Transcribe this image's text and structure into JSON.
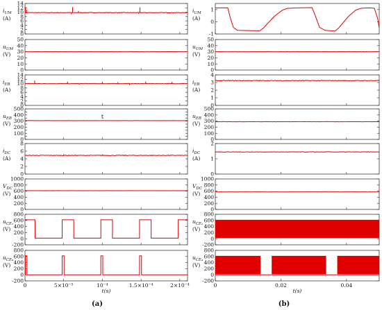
{
  "figure": {
    "panel_labels": [
      "(a)",
      "(b)"
    ]
  },
  "chart_data": [
    {
      "panel": "(a)",
      "type": "line",
      "xlabel": "t(s)",
      "xlim": [
        0,
        0.00021
      ],
      "xticks": [
        0,
        5e-05,
        0.0001,
        0.00015,
        0.0002
      ],
      "xtick_labels": [
        "0",
        "5×10⁻⁵",
        "10⁻⁴",
        "1.5×10⁻⁴",
        "2×10⁻⁴"
      ],
      "grid": false,
      "subplots": [
        {
          "ylabel": "iUM",
          "sym": "i",
          "sub": "UM",
          "unit": "(A)",
          "ylim": [
            0,
            14
          ],
          "yticks": [
            0,
            2,
            4,
            6,
            8,
            10,
            12,
            14
          ],
          "base": 9.8,
          "noise": 0.12,
          "spikes": [
            {
              "x": 5e-07,
              "y": 12.4
            },
            {
              "x": 2e-06,
              "y": 11.2
            },
            {
              "x": 6.15e-05,
              "y": 12.3
            },
            {
              "x": 6e-05,
              "y": 9.0
            },
            {
              "x": 6.9e-05,
              "y": 10.6
            },
            {
              "x": 0.0001485,
              "y": 12.2
            },
            {
              "x": 0.000147,
              "y": 9.1
            }
          ]
        },
        {
          "ylabel": "uUM",
          "sym": "u",
          "sub": "UM",
          "unit": "(V)",
          "ylim": [
            0,
            50
          ],
          "yticks": [
            0,
            10,
            20,
            30,
            40,
            50
          ],
          "base": 30,
          "noise": 0.15,
          "spikes": []
        },
        {
          "ylabel": "iEB",
          "sym": "i",
          "sub": "EB",
          "unit": "(A)",
          "ylim": [
            0,
            14
          ],
          "yticks": [
            0,
            2,
            4,
            6,
            8,
            10,
            12,
            14
          ],
          "base": 10.0,
          "noise": 0.1,
          "spikes": [
            {
              "x": 1.25e-05,
              "y": 11.4
            },
            {
              "x": 5.5e-05,
              "y": 10.9
            },
            {
              "x": 0.0001,
              "y": 10.9
            },
            {
              "x": 0.00012,
              "y": 10.6
            },
            {
              "x": 0.000156,
              "y": 11.0
            },
            {
              "x": 0.00019,
              "y": 10.8
            },
            {
              "x": 0.000135,
              "y": 9.3
            },
            {
              "x": 7e-05,
              "y": 9.5
            }
          ]
        },
        {
          "ylabel": "uEB",
          "sym": "u",
          "sub": "EB",
          "unit": "(V)",
          "ylim": [
            0,
            500
          ],
          "yticks": [
            0,
            50,
            100,
            150,
            200,
            250,
            300,
            350,
            400,
            450,
            500
          ],
          "base": 308,
          "noise": 1.2,
          "spikes": [],
          "annotation": {
            "text": "t",
            "x": 0.0001
          }
        },
        {
          "ylabel": "iDC",
          "sym": "i",
          "sub": "DC",
          "unit": "(A)",
          "ylim": [
            0,
            8
          ],
          "yticks": [
            0,
            2,
            4,
            6,
            8
          ],
          "base": 4.9,
          "noise": 0.08,
          "spikes": [
            {
              "x": 5e-05,
              "y": 5.2
            },
            {
              "x": 0.0001,
              "y": 5.15
            }
          ]
        },
        {
          "ylabel": "VDC",
          "sym": "V",
          "sub": "DC",
          "unit": "(V)",
          "ylim": [
            0,
            1000
          ],
          "yticks": [
            0,
            200,
            400,
            600,
            800,
            1000
          ],
          "base": 615,
          "noise": 2,
          "spikes": []
        },
        {
          "ylabel": "uCE2",
          "sym": "u",
          "sub": "CE₂",
          "unit": "(V)",
          "ylim": [
            -200,
            800
          ],
          "yticks": [
            -200,
            0,
            200,
            400,
            600,
            800
          ],
          "square": {
            "high": 620,
            "low": 20,
            "high_intervals": [
              [
                0,
                1.3e-05
              ],
              [
                4.8e-05,
                6.3e-05
              ],
              [
                9.8e-05,
                0.000113
              ],
              [
                0.000148,
                0.000163
              ],
              [
                0.000198,
                0.00021
              ]
            ]
          }
        },
        {
          "ylabel": "uCE4",
          "sym": "u",
          "sub": "CE₄",
          "unit": "(V)",
          "ylim": [
            -200,
            800
          ],
          "yticks": [
            -200,
            0,
            200,
            400,
            600,
            800
          ],
          "pulses": {
            "high": 620,
            "low": 0,
            "intervals": [
              [
                5e-07,
                2.5e-06
              ],
              [
                4.8e-05,
                5.05e-05
              ],
              [
                9.8e-05,
                0.0001005
              ],
              [
                0.000148,
                0.0001505
              ]
            ]
          }
        }
      ]
    },
    {
      "panel": "(b)",
      "type": "line",
      "xlabel": "t(s)",
      "xlim": [
        0,
        0.05
      ],
      "xticks": [
        0,
        0.02,
        0.04
      ],
      "xtick_labels": [
        "0",
        "0.02",
        "0.04"
      ],
      "grid": false,
      "subplots": [
        {
          "ylabel": "iUM",
          "sym": "i",
          "sub": "UM",
          "unit": "(A)",
          "ylim": [
            -1,
            1.5
          ],
          "yticks": [
            -1,
            0,
            1
          ],
          "points": [
            [
              0,
              1.15
            ],
            [
              0.0038,
              1.15
            ],
            [
              0.0045,
              0.4
            ],
            [
              0.0055,
              -0.45
            ],
            [
              0.0068,
              -0.7
            ],
            [
              0.0135,
              -0.75
            ],
            [
              0.0145,
              -0.55
            ],
            [
              0.018,
              0.45
            ],
            [
              0.0205,
              0.95
            ],
            [
              0.022,
              1.1
            ],
            [
              0.025,
              1.15
            ],
            [
              0.0295,
              1.15
            ],
            [
              0.0305,
              0.5
            ],
            [
              0.0318,
              -0.45
            ],
            [
              0.0335,
              -0.7
            ],
            [
              0.0365,
              -0.75
            ],
            [
              0.0375,
              -0.55
            ],
            [
              0.0405,
              0.4
            ],
            [
              0.0428,
              0.95
            ],
            [
              0.0445,
              1.1
            ],
            [
              0.047,
              1.15
            ],
            [
              0.0485,
              1.12
            ],
            [
              0.0495,
              0.3
            ],
            [
              0.05,
              -0.5
            ]
          ]
        },
        {
          "ylabel": "uUM",
          "sym": "u",
          "sub": "UM",
          "unit": "(V)",
          "ylim": [
            0,
            50
          ],
          "yticks": [
            0,
            10,
            20,
            30,
            40,
            50
          ],
          "base": 30,
          "noise": 0.25
        },
        {
          "ylabel": "iEB",
          "sym": "i",
          "sub": "EB",
          "unit": "(A)",
          "ylim": [
            0,
            4
          ],
          "yticks": [
            0,
            1,
            2,
            3,
            4
          ],
          "base": 3.25,
          "noise": 0.05
        },
        {
          "ylabel": "uEB",
          "sym": "u",
          "sub": "EB",
          "unit": "(V)",
          "ylim": [
            0,
            500
          ],
          "yticks": [
            0,
            100,
            200,
            300,
            400,
            500
          ],
          "base": 290,
          "noise": 2
        },
        {
          "ylabel": "iDC",
          "sym": "i",
          "sub": "DC",
          "unit": "(A)",
          "ylim": [
            0,
            2
          ],
          "yticks": [
            0,
            1,
            2
          ],
          "base": 1.45,
          "noise": 0.015
        },
        {
          "ylabel": "VDC",
          "sym": "V",
          "sub": "DC",
          "unit": "(V)",
          "ylim": [
            0,
            1000
          ],
          "yticks": [
            0,
            200,
            400,
            600,
            800,
            1000
          ],
          "base": 575,
          "noise": 3
        },
        {
          "ylabel": "uCE2",
          "sym": "u",
          "sub": "CE₂",
          "unit": "(V)",
          "ylim": [
            -200,
            800
          ],
          "yticks": [
            -200,
            0,
            200,
            400,
            600,
            800
          ],
          "band": {
            "high": 620,
            "low": 20,
            "intervals": [
              [
                0,
                0.05
              ]
            ]
          }
        },
        {
          "ylabel": "uCE4",
          "sym": "u",
          "sub": "CE₄",
          "unit": "(V)",
          "ylim": [
            -200,
            800
          ],
          "yticks": [
            -200,
            0,
            200,
            400,
            600,
            800
          ],
          "band": {
            "high": 620,
            "low": 20,
            "intervals": [
              [
                0,
                0.0138
              ],
              [
                0.0172,
                0.0338
              ],
              [
                0.0372,
                0.05
              ]
            ]
          },
          "gap_level": 0
        }
      ]
    }
  ]
}
